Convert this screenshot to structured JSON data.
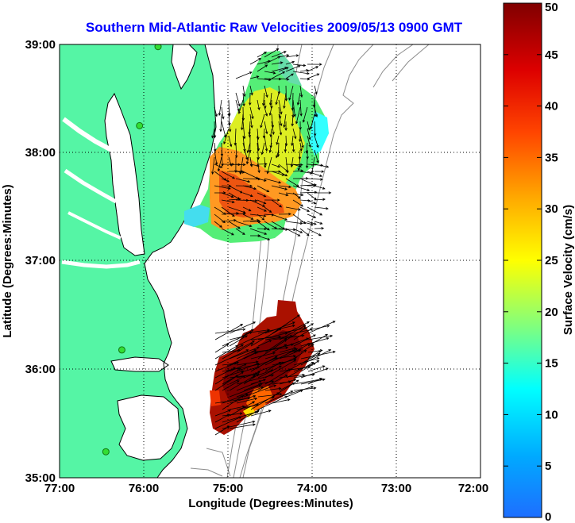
{
  "title": "Southern Mid-Atlantic Raw Velocities 2009/05/13 0900 GMT",
  "x_axis": {
    "label": "Longitude (Degrees:Minutes)",
    "ticks": [
      {
        "value": -77,
        "label": "77:00"
      },
      {
        "value": -76,
        "label": "76:00"
      },
      {
        "value": -75,
        "label": "75:00"
      },
      {
        "value": -74,
        "label": "74:00"
      },
      {
        "value": -73,
        "label": "73:00"
      },
      {
        "value": -72,
        "label": "72:00"
      }
    ]
  },
  "y_axis": {
    "label": "Latitude (Degrees:Minutes)",
    "ticks": [
      {
        "value": 35,
        "label": "35:00"
      },
      {
        "value": 36,
        "label": "36:00"
      },
      {
        "value": 37,
        "label": "37:00"
      },
      {
        "value": 38,
        "label": "38:00"
      },
      {
        "value": 39,
        "label": "39:00"
      }
    ]
  },
  "colorbar": {
    "label": "Surface Velocity (cm/s)",
    "ticks": [
      {
        "value": 0,
        "label": "0"
      },
      {
        "value": 5,
        "label": "5"
      },
      {
        "value": 10,
        "label": "10"
      },
      {
        "value": 15,
        "label": "15"
      },
      {
        "value": 20,
        "label": "20"
      },
      {
        "value": 25,
        "label": "25"
      },
      {
        "value": 30,
        "label": "30"
      },
      {
        "value": 35,
        "label": "35"
      },
      {
        "value": 40,
        "label": "40"
      },
      {
        "value": 45,
        "label": "45"
      },
      {
        "value": 50,
        "label": "50"
      }
    ]
  },
  "colors": {
    "land": "#55f5a5",
    "coast_line": "#000000",
    "bathymetry": "#8c8c8c",
    "station": "#33dd33",
    "title": "#0000ff",
    "grid": "#000000"
  },
  "map_extent": {
    "lon": [
      -77,
      -72
    ],
    "lat": [
      35,
      39
    ]
  },
  "stations": [
    {
      "lon": -75.83,
      "lat": 38.98
    },
    {
      "lon": -76.05,
      "lat": 38.25
    },
    {
      "lon": -76.26,
      "lat": 36.18
    },
    {
      "lon": -76.45,
      "lat": 35.24
    }
  ]
}
